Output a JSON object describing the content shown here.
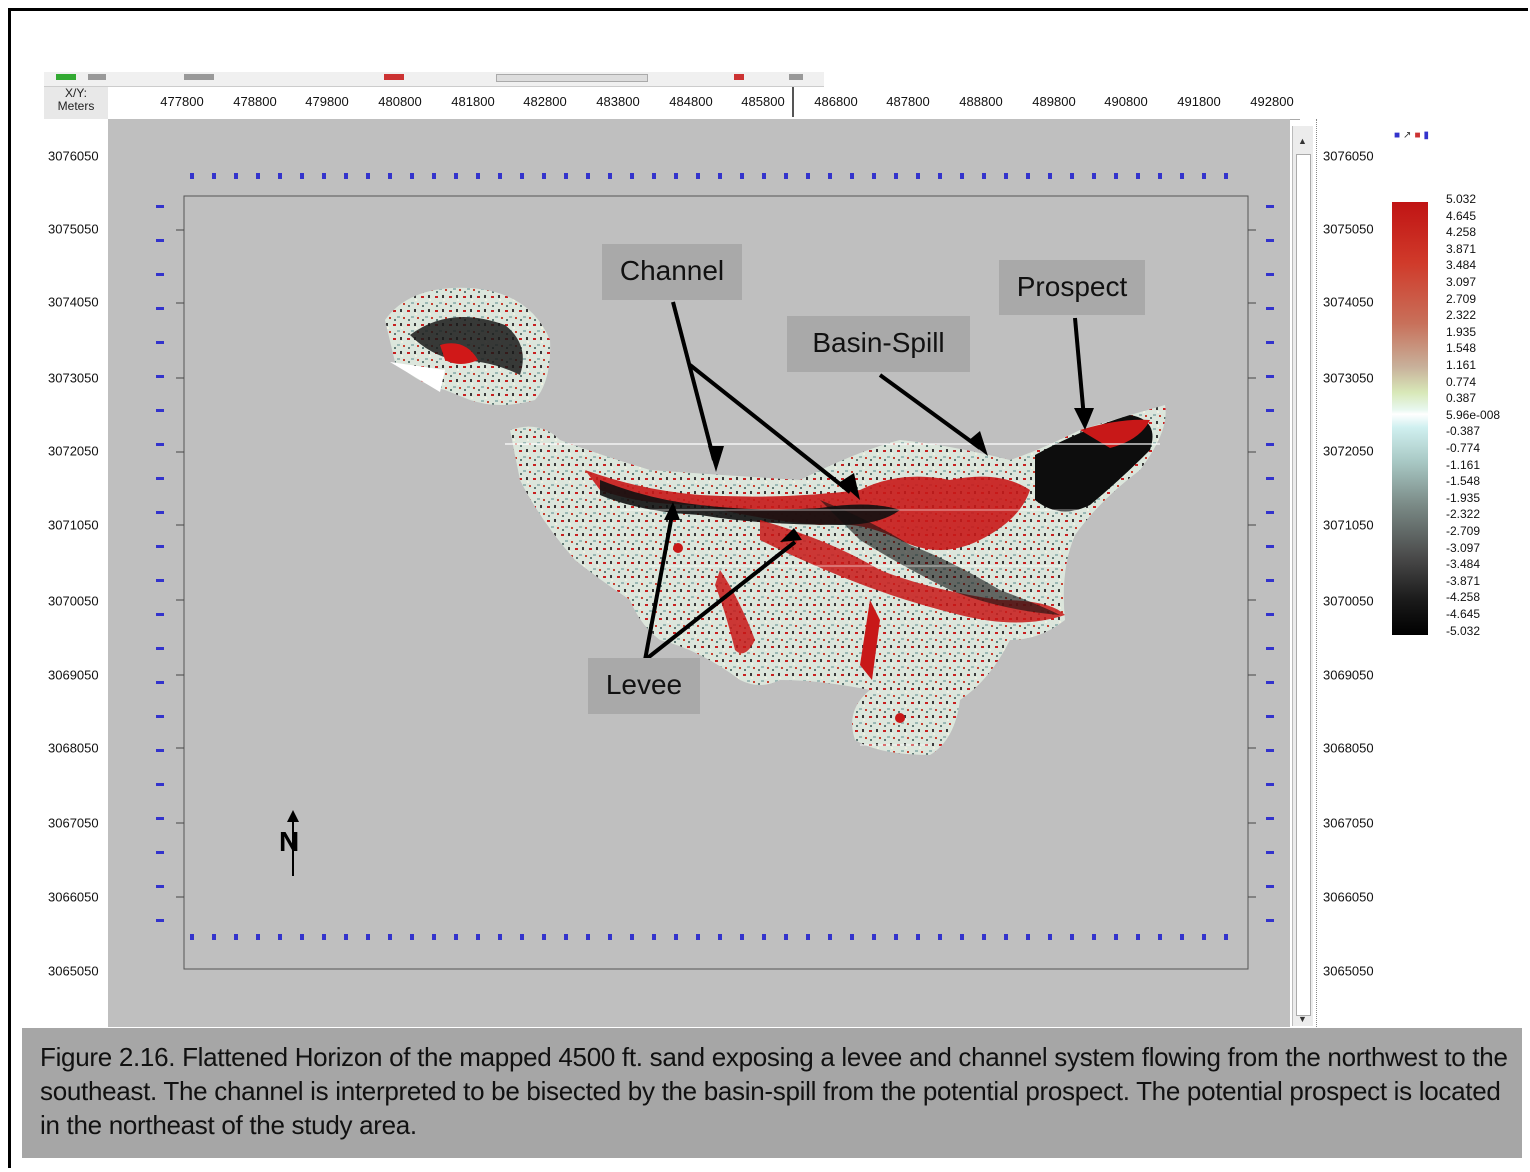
{
  "header": {
    "xy_label": "X/Y:",
    "units_label": "Meters"
  },
  "x_axis_ticks": [
    "477800",
    "478800",
    "479800",
    "480800",
    "481800",
    "482800",
    "483800",
    "484800",
    "485800",
    "486800",
    "487800",
    "488800",
    "489800",
    "490800",
    "491800",
    "492800"
  ],
  "y_axis_left_ticks": [
    "3076050",
    "3075050",
    "3074050",
    "3073050",
    "3072050",
    "3071050",
    "3070050",
    "3069050",
    "3068050",
    "3067050",
    "3066050",
    "3065050"
  ],
  "y_axis_right_ticks": [
    "3076050",
    "3075050",
    "3074050",
    "3073050",
    "3072050",
    "3071050",
    "3070050",
    "3069050",
    "3068050",
    "3067050",
    "3066050",
    "3065050"
  ],
  "legend": {
    "values": [
      "5.032",
      "4.645",
      "4.258",
      "3.871",
      "3.484",
      "3.097",
      "2.709",
      "2.322",
      "1.935",
      "1.548",
      "1.161",
      "0.774",
      "0.387",
      "5.96e-008",
      "-0.387",
      "-0.774",
      "-1.161",
      "-1.548",
      "-1.935",
      "-2.322",
      "-2.709",
      "-3.097",
      "-3.484",
      "-3.871",
      "-4.258",
      "-4.645",
      "-5.032"
    ],
    "color_top": "#c01414",
    "color_bottom": "#000000"
  },
  "annotations": {
    "channel": "Channel",
    "prospect": "Prospect",
    "basin_spill": "Basin-Spill",
    "levee": "Levee"
  },
  "north_label": "N",
  "caption": "Figure 2.16.  Flattened Horizon of the mapped 4500 ft. sand exposing a levee and channel system flowing from the northwest to the southeast.  The channel is interpreted to be bisected by the basin-spill from the potential prospect. The potential prospect is located in the northeast of the study area.",
  "colors": {
    "canvas": "#bfbfbf",
    "label_box": "#a9a9a9",
    "caption_bg": "#a6a6a6",
    "grid_blue": "#3333cc"
  }
}
